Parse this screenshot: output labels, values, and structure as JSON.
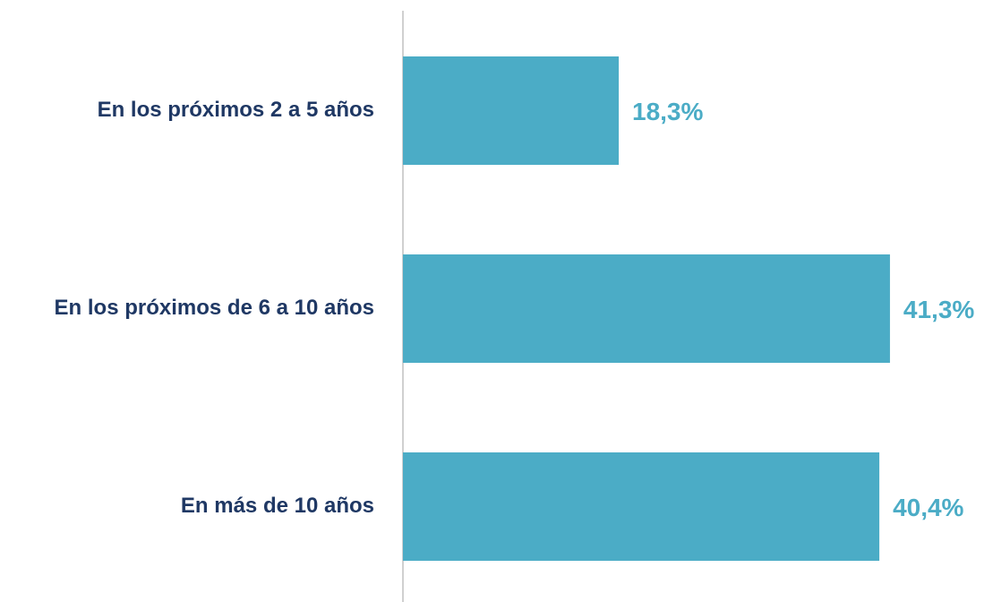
{
  "chart_data": {
    "type": "bar",
    "orientation": "horizontal",
    "categories": [
      "En los próximos 2 a 5 años",
      "En los próximos de 6 a 10 años",
      "En más de 10 años"
    ],
    "values": [
      18.3,
      41.3,
      40.4
    ],
    "value_labels": [
      "18,3%",
      "41,3%",
      "40,4%"
    ],
    "color": "#4bacc6",
    "label_color": "#4bacc6",
    "category_color": "#1f3864"
  }
}
